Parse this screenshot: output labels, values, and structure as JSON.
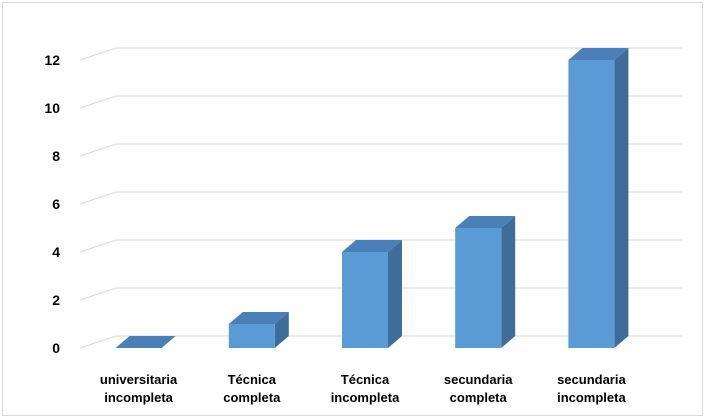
{
  "chart_data": {
    "type": "bar",
    "style": "3d-column",
    "title": "",
    "xlabel": "",
    "ylabel": "",
    "categories": [
      [
        "universitaria",
        "incompleta"
      ],
      [
        "Técnica",
        "completa"
      ],
      [
        "Técnica",
        "incompleta"
      ],
      [
        "secundaria",
        "completa"
      ],
      [
        "secundaria",
        "incompleta"
      ]
    ],
    "values": [
      0,
      1,
      4,
      5,
      12
    ],
    "ylim": [
      0,
      12
    ],
    "yticks": [
      "0",
      "2",
      "4",
      "6",
      "8",
      "10",
      "12"
    ],
    "grid": true,
    "legend": "none",
    "colors": {
      "bar_front": "#5b9bd5",
      "bar_top": "#4a80b8",
      "bar_side": "#3f6d9a",
      "gridline": "#d9d9d9"
    }
  }
}
